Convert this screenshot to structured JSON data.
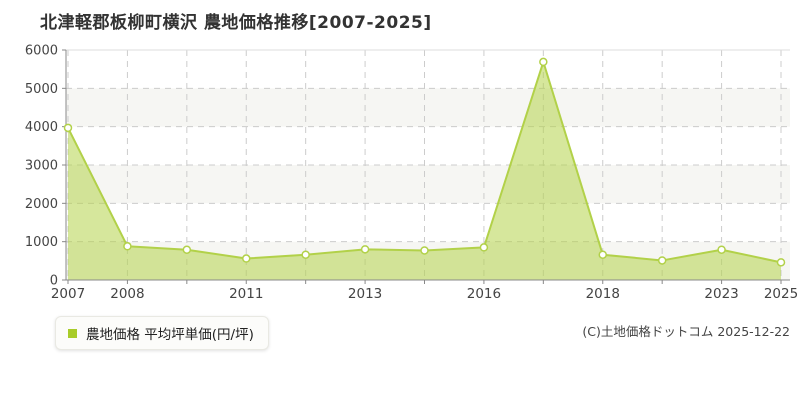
{
  "page": {
    "title": "北津軽郡板柳町横沢 農地価格推移[2007-2025]"
  },
  "legend": {
    "label": "農地価格 平均坪単価(円/坪)",
    "marker_color": "#a8cc29"
  },
  "footer": {
    "copyright": "(C)土地価格ドットコム 2025-12-22"
  },
  "chart_data": {
    "type": "area",
    "title": "北津軽郡板柳町横沢 農地価格推移[2007-2025]",
    "series_name": "農地価格 平均坪単価(円/坪)",
    "x_tick_labels": [
      "2007",
      "2008",
      "",
      "2011",
      "",
      "2013",
      "",
      "2016",
      "",
      "2018",
      "",
      "2023",
      "2025"
    ],
    "values": [
      3970,
      880,
      790,
      560,
      660,
      800,
      770,
      850,
      5690,
      660,
      510,
      790,
      460
    ],
    "ylim": [
      0,
      6000
    ],
    "y_ticks": [
      0,
      1000,
      2000,
      3000,
      4000,
      5000,
      6000
    ],
    "grid": "dashed",
    "legend_position": "bottom-left",
    "colors": {
      "line": "#b2d149",
      "fill": "rgba(181,212,74,0.55)",
      "marker_fill": "#ffffff",
      "grid": "#cccccc",
      "top_border": "#dddddd",
      "axis": "#888888",
      "band": "#f6f6f3",
      "tick_text": "#444444"
    }
  }
}
